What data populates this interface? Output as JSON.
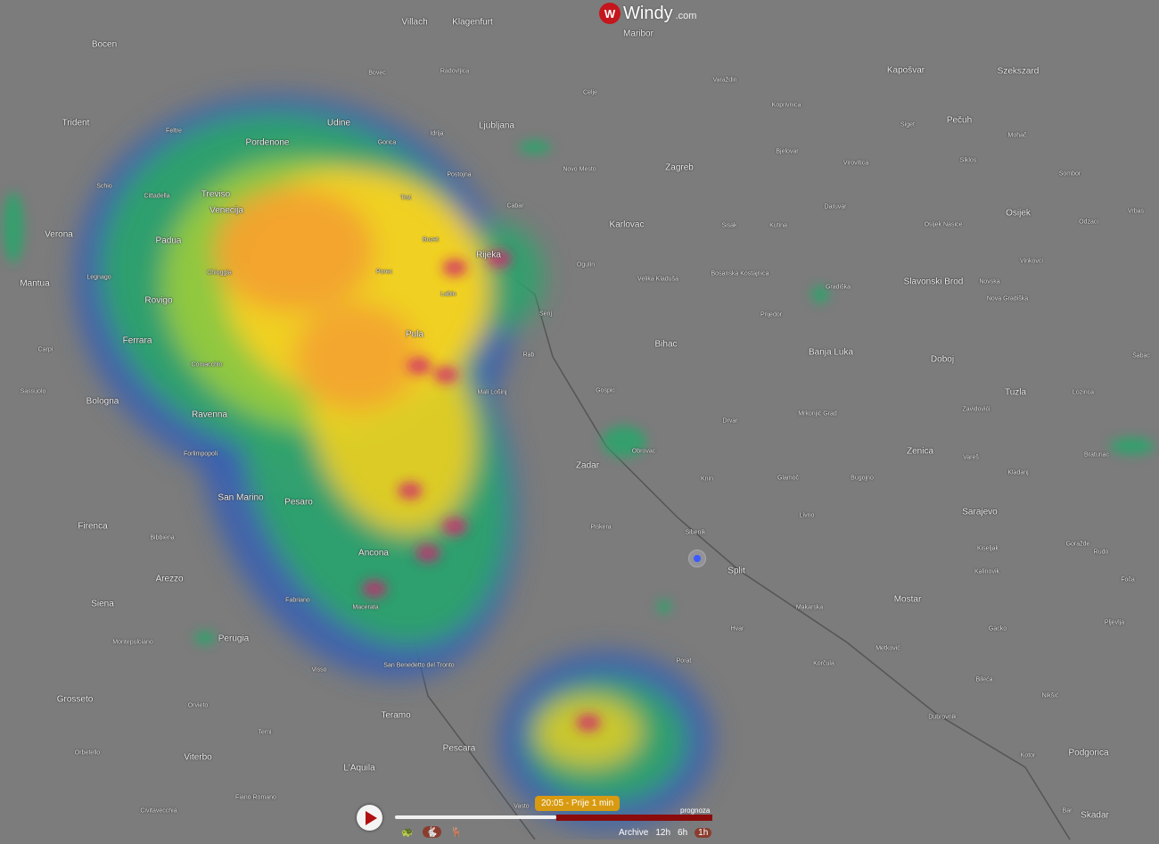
{
  "app": {
    "logo_mark": "W",
    "logo_name": "Windy",
    "logo_domain": ".com"
  },
  "layer": "radar",
  "colors": {
    "radar_low": "#3a5fb0",
    "radar_mid": "#2fa36b",
    "radar_high": "#f0d020",
    "radar_peak": "#d02070",
    "accent": "#c4161c",
    "forecast_bar": "#8a0b0b"
  },
  "timeline": {
    "play_icon": "play-icon",
    "current_time": "20:05 - Prije 1 min",
    "forecast_label": "prognoza",
    "archive_label": "Archive",
    "intervals": [
      "12h",
      "6h",
      "1h"
    ],
    "selected_interval": "1h",
    "speed_icons": [
      "turtle-icon",
      "rabbit-icon",
      "deer-icon"
    ],
    "progress_percent": 51
  },
  "cities": [
    "Bocen",
    "Trident",
    "Udine",
    "Ljubljana",
    "Zagreb",
    "Klagenfurt",
    "Villach",
    "Maribor",
    "Pordenone",
    "Treviso",
    "Venecija",
    "Padua",
    "Verona",
    "Mantua",
    "Rovigo",
    "Ferrara",
    "Bologna",
    "Ravenna",
    "San Marino",
    "Pesaro",
    "Firenca",
    "Ancona",
    "Arezzo",
    "Siena",
    "Perugia",
    "Grosseto",
    "Viterbo",
    "L'Aquila",
    "Teramo",
    "Pescara",
    "Rijeka",
    "Pula",
    "Zadar",
    "Split",
    "Bihac",
    "Banja Luka",
    "Sarajevo",
    "Mostar",
    "Tuzla",
    "Zenica",
    "Osijek",
    "Pečuh",
    "Kapošvar",
    "Szekszard",
    "Slavonski Brod",
    "Doboj",
    "Podgorica",
    "Skadar",
    "Karlovac"
  ],
  "towns": [
    "Trst",
    "Kotor",
    "Makarska",
    "Dubrovnik",
    "Gospic",
    "Obrovac",
    "Mali Lošinj",
    "Senj",
    "Cabar",
    "Sibenik",
    "Knin",
    "Labin",
    "Porec",
    "Buzet",
    "Chioggia",
    "Comacchio",
    "Macerata",
    "Fabriano",
    "Visso",
    "Varaždin",
    "Sisak",
    "Prijedor",
    "Vinkovci",
    "Kutina",
    "Daruvar",
    "Virovitica",
    "Mohač",
    "Livno",
    "Hvar",
    "Korčula",
    "Metković",
    "Nova Gradiška",
    "Gradiška",
    "Foča",
    "Goražde",
    "Feltre",
    "Schio",
    "Cittadella",
    "Legnago",
    "Carpi",
    "Sassuolo",
    "Forlimpopoli",
    "Bibbiena",
    "Montepulciano",
    "Orvieto",
    "Terni",
    "Fiano Romano",
    "Civitavecchia",
    "Orbetello",
    "San Benedetto del Tronto",
    "Vasto",
    "Celje",
    "Novo Mesto",
    "Postojna",
    "Gorica",
    "Idrija",
    "Bovec",
    "Radovljica",
    "Koprivnica",
    "Bjelovar",
    "Ogulin",
    "Velika Kladuša",
    "Bosanska Kostajnica",
    "Mrkonjić Grad",
    "Glamoč",
    "Bugojno",
    "Kiseljak",
    "Drvar",
    "Zavidovići",
    "Kladanj",
    "Vareš",
    "Kalinovik",
    "Gacko",
    "Bileća",
    "Nikšić",
    "Pljevlja",
    "Rudo",
    "Bar",
    "Rab",
    "Porat",
    "Piskera",
    "Lozinca",
    "Bratunac",
    "Šabac",
    "Sombor",
    "Odzaci",
    "Vrbas",
    "Siklos",
    "Siget",
    "Osijek Nasice",
    "Novska"
  ]
}
